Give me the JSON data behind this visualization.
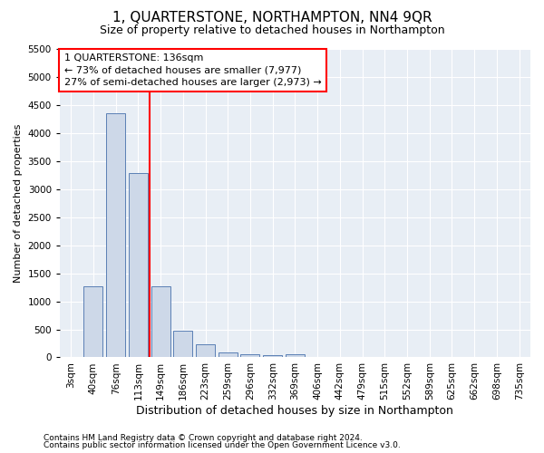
{
  "title": "1, QUARTERSTONE, NORTHAMPTON, NN4 9QR",
  "subtitle": "Size of property relative to detached houses in Northampton",
  "xlabel": "Distribution of detached houses by size in Northampton",
  "ylabel": "Number of detached properties",
  "footer1": "Contains HM Land Registry data © Crown copyright and database right 2024.",
  "footer2": "Contains public sector information licensed under the Open Government Licence v3.0.",
  "categories": [
    "3sqm",
    "40sqm",
    "76sqm",
    "113sqm",
    "149sqm",
    "186sqm",
    "223sqm",
    "259sqm",
    "296sqm",
    "332sqm",
    "369sqm",
    "406sqm",
    "442sqm",
    "479sqm",
    "515sqm",
    "552sqm",
    "589sqm",
    "625sqm",
    "662sqm",
    "698sqm",
    "735sqm"
  ],
  "values": [
    0,
    1270,
    4350,
    3280,
    1270,
    480,
    240,
    90,
    55,
    35,
    55,
    0,
    0,
    0,
    0,
    0,
    0,
    0,
    0,
    0,
    0
  ],
  "bar_color": "#cdd8e8",
  "bar_edge_color": "#5b7fb5",
  "red_line_x": 3.5,
  "annotation_line1": "1 QUARTERSTONE: 136sqm",
  "annotation_line2": "← 73% of detached houses are smaller (7,977)",
  "annotation_line3": "27% of semi-detached houses are larger (2,973) →",
  "ylim": [
    0,
    5500
  ],
  "yticks": [
    0,
    500,
    1000,
    1500,
    2000,
    2500,
    3000,
    3500,
    4000,
    4500,
    5000,
    5500
  ],
  "background_color": "#e8eef5",
  "grid_color": "#ffffff",
  "title_fontsize": 11,
  "subtitle_fontsize": 9,
  "xlabel_fontsize": 9,
  "ylabel_fontsize": 8,
  "tick_fontsize": 7.5,
  "footer_fontsize": 6.5,
  "annotation_fontsize": 8
}
